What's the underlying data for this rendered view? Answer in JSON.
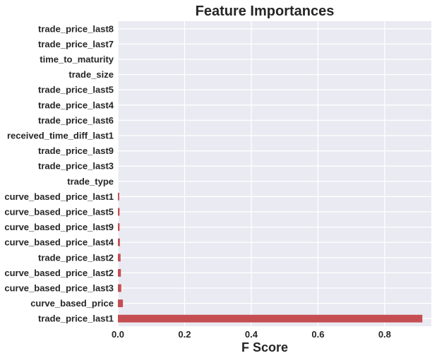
{
  "chart_data": {
    "type": "bar",
    "orientation": "horizontal",
    "title": "Feature Importances",
    "xlabel": "F Score",
    "ylabel": "",
    "xlim": [
      0,
      0.94
    ],
    "xticks": [
      0.0,
      0.2,
      0.4,
      0.6,
      0.8
    ],
    "xtick_labels": [
      "0.0",
      "0.2",
      "0.4",
      "0.6",
      "0.8"
    ],
    "grid": true,
    "bar_color": "#c44e52",
    "background_color": "#eaeaf2",
    "categories": [
      "trade_price_last8",
      "trade_price_last7",
      "time_to_maturity",
      "trade_size",
      "trade_price_last5",
      "trade_price_last4",
      "trade_price_last6",
      "received_time_diff_last1",
      "trade_price_last9",
      "trade_price_last3",
      "trade_type",
      "curve_based_price_last1",
      "curve_based_price_last5",
      "curve_based_price_last9",
      "curve_based_price_last4",
      "trade_price_last2",
      "curve_based_price_last2",
      "curve_based_price_last3",
      "curve_based_price",
      "trade_price_last1"
    ],
    "values": [
      0.0,
      0.0,
      0.0,
      0.0,
      0.0,
      0.0,
      0.0,
      0.0,
      0.0,
      0.0,
      0.0,
      0.004,
      0.005,
      0.005,
      0.006,
      0.008,
      0.009,
      0.01,
      0.015,
      0.913
    ]
  }
}
